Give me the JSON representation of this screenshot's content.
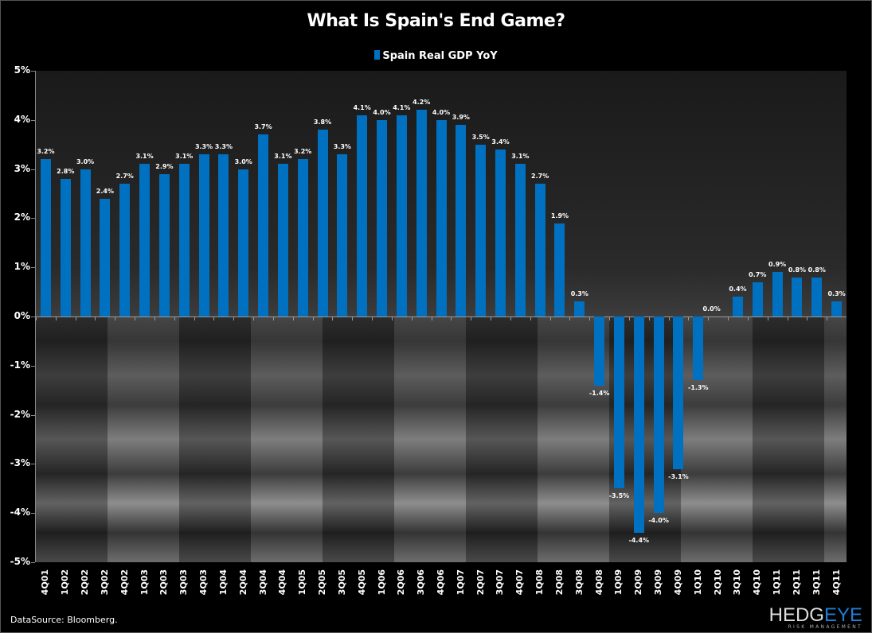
{
  "header": {
    "title": "What Is Spain's End Game?",
    "legend_label": "Spain Real GDP YoY",
    "legend_color": "#0070c0"
  },
  "footer": {
    "source": "DataSource: Bloomberg.",
    "logo_main_a": "HEDG",
    "logo_main_b": "EYE",
    "logo_sub": "RISK MANAGEMENT"
  },
  "y_ticks": [
    "5%",
    "4%",
    "3%",
    "2%",
    "1%",
    "0%",
    "-1%",
    "-2%",
    "-3%",
    "-4%",
    "-5%"
  ],
  "chart_data": {
    "type": "bar",
    "title": "What Is Spain's End Game?",
    "xlabel": "",
    "ylabel": "",
    "ylim": [
      -5,
      5
    ],
    "ytick_format": "%",
    "legend_position": "top",
    "grid": false,
    "categories": [
      "4Q01",
      "1Q02",
      "2Q02",
      "3Q02",
      "4Q02",
      "1Q03",
      "2Q03",
      "3Q03",
      "4Q03",
      "1Q04",
      "2Q04",
      "3Q04",
      "4Q04",
      "1Q05",
      "2Q05",
      "3Q05",
      "4Q05",
      "1Q06",
      "2Q06",
      "3Q06",
      "4Q06",
      "1Q07",
      "2Q07",
      "3Q07",
      "4Q07",
      "1Q08",
      "2Q08",
      "3Q08",
      "4Q08",
      "1Q09",
      "2Q09",
      "3Q09",
      "4Q09",
      "1Q10",
      "2Q10",
      "3Q10",
      "4Q10",
      "1Q11",
      "2Q11",
      "3Q11",
      "4Q11"
    ],
    "series": [
      {
        "name": "Spain Real GDP YoY",
        "color": "#0070c0",
        "values": [
          3.2,
          2.8,
          3.0,
          2.4,
          2.7,
          3.1,
          2.9,
          3.1,
          3.3,
          3.3,
          3.0,
          3.7,
          3.1,
          3.2,
          3.8,
          3.3,
          4.1,
          4.0,
          4.1,
          4.2,
          4.0,
          3.9,
          3.5,
          3.4,
          3.1,
          2.7,
          1.9,
          0.3,
          -1.4,
          -3.5,
          -4.4,
          -4.0,
          -3.1,
          -1.3,
          0.0,
          0.4,
          0.7,
          0.9,
          0.8,
          0.8,
          0.3
        ],
        "labels": [
          "3.2%",
          "2.8%",
          "3.0%",
          "2.4%",
          "2.7%",
          "3.1%",
          "2.9%",
          "3.1%",
          "3.3%",
          "3.3%",
          "3.0%",
          "3.7%",
          "3.1%",
          "3.2%",
          "3.8%",
          "3.3%",
          "4.1%",
          "4.0%",
          "4.1%",
          "4.2%",
          "4.0%",
          "3.9%",
          "3.5%",
          "3.4%",
          "3.1%",
          "2.7%",
          "1.9%",
          "0.3%",
          "-1.4%",
          "-3.5%",
          "-4.4%",
          "-4.0%",
          "-3.1%",
          "-1.3%",
          "0.0%",
          "0.4%",
          "0.7%",
          "0.9%",
          "0.8%",
          "0.8%",
          "0.3%"
        ]
      }
    ],
    "source": "DataSource: Bloomberg."
  }
}
